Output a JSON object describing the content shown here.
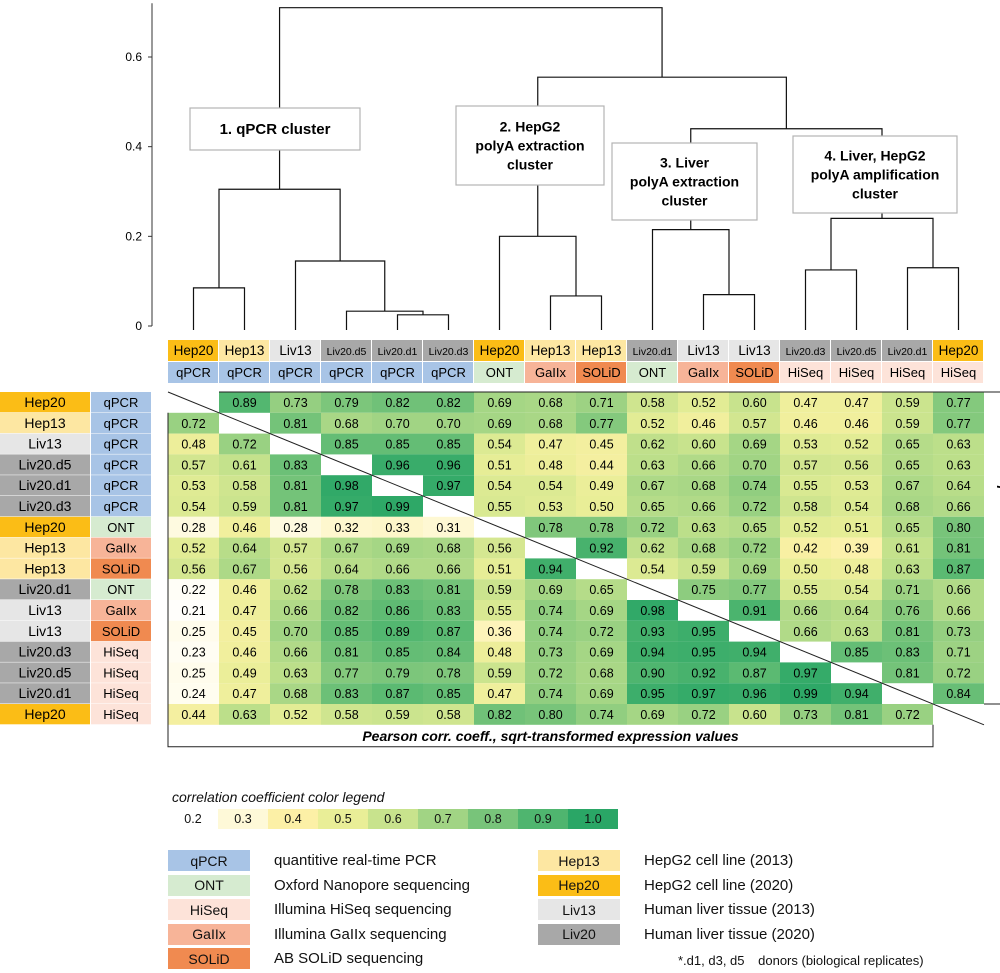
{
  "colors": {
    "qPCR": "#a8c4e6",
    "ONT": "#d6ebd0",
    "HiSeq": "#fde3d9",
    "GaIIx": "#f7b498",
    "SOLiD": "#f08a50",
    "Hep13": "#fde7a2",
    "Hep20": "#fbbd16",
    "Liv13": "#e6e6e6",
    "Liv20": "#a8a8a8",
    "scale": [
      "#ffffff",
      "#fef9d8",
      "#fcf0a6",
      "#e9ee97",
      "#c8e38d",
      "#a1d484",
      "#78c47a",
      "#4fb56f",
      "#2aa666"
    ]
  },
  "chart_data": {
    "type": "heatmap",
    "dendrogram": {
      "y_ticks": [
        "0",
        "0.2",
        "0.4",
        "0.6"
      ],
      "ylim": [
        0,
        0.72
      ],
      "merges": [
        {
          "a": "L0",
          "b": "L1",
          "h": 0.085
        },
        {
          "a": "L4",
          "b": "L5",
          "h": 0.025
        },
        {
          "a": "L3",
          "b": "m1",
          "h": 0.033
        },
        {
          "a": "L2",
          "b": "m2",
          "h": 0.145
        },
        {
          "a": "m0",
          "b": "m3",
          "h": 0.305
        },
        {
          "a": "L7",
          "b": "L8",
          "h": 0.067
        },
        {
          "a": "L6",
          "b": "m5",
          "h": 0.2
        },
        {
          "a": "L10",
          "b": "L11",
          "h": 0.07
        },
        {
          "a": "L9",
          "b": "m7",
          "h": 0.215
        },
        {
          "a": "L12",
          "b": "L13",
          "h": 0.125
        },
        {
          "a": "L14",
          "b": "L15",
          "h": 0.13
        },
        {
          "a": "m9",
          "b": "m10",
          "h": 0.24
        },
        {
          "a": "m8",
          "b": "m11",
          "h": 0.44
        },
        {
          "a": "m6",
          "b": "m12",
          "h": 0.555
        },
        {
          "a": "m4",
          "b": "m13",
          "h": 0.71
        }
      ],
      "cluster_boxes": [
        {
          "lines": [
            "1. qPCR cluster"
          ]
        },
        {
          "lines": [
            "2. HepG2",
            "polyA extraction",
            "cluster"
          ]
        },
        {
          "lines": [
            "3. Liver",
            "polyA extraction",
            "cluster"
          ]
        },
        {
          "lines": [
            "4. Liver, HepG2",
            "polyA amplification",
            "cluster"
          ]
        }
      ]
    },
    "samples": [
      {
        "sample": "Hep20",
        "stype": "Hep20",
        "method": "qPCR"
      },
      {
        "sample": "Hep13",
        "stype": "Hep13",
        "method": "qPCR"
      },
      {
        "sample": "Liv13",
        "stype": "Liv13",
        "method": "qPCR"
      },
      {
        "sample": "Liv20.d5",
        "stype": "Liv20",
        "method": "qPCR"
      },
      {
        "sample": "Liv20.d1",
        "stype": "Liv20",
        "method": "qPCR"
      },
      {
        "sample": "Liv20.d3",
        "stype": "Liv20",
        "method": "qPCR"
      },
      {
        "sample": "Hep20",
        "stype": "Hep20",
        "method": "ONT"
      },
      {
        "sample": "Hep13",
        "stype": "Hep13",
        "method": "GaIIx"
      },
      {
        "sample": "Hep13",
        "stype": "Hep13",
        "method": "SOLiD"
      },
      {
        "sample": "Liv20.d1",
        "stype": "Liv20",
        "method": "ONT"
      },
      {
        "sample": "Liv13",
        "stype": "Liv13",
        "method": "GaIIx"
      },
      {
        "sample": "Liv13",
        "stype": "Liv13",
        "method": "SOLiD"
      },
      {
        "sample": "Liv20.d3",
        "stype": "Liv20",
        "method": "HiSeq"
      },
      {
        "sample": "Liv20.d5",
        "stype": "Liv20",
        "method": "HiSeq"
      },
      {
        "sample": "Liv20.d1",
        "stype": "Liv20",
        "method": "HiSeq"
      },
      {
        "sample": "Hep20",
        "stype": "Hep20",
        "method": "HiSeq"
      }
    ],
    "matrix": [
      [
        null,
        0.89,
        0.73,
        0.79,
        0.82,
        0.82,
        0.69,
        0.68,
        0.71,
        0.58,
        0.52,
        0.6,
        0.47,
        0.47,
        0.59,
        0.77
      ],
      [
        0.72,
        null,
        0.81,
        0.68,
        0.7,
        0.7,
        0.69,
        0.68,
        0.77,
        0.52,
        0.46,
        0.57,
        0.46,
        0.46,
        0.59,
        0.77
      ],
      [
        0.48,
        0.72,
        null,
        0.85,
        0.85,
        0.85,
        0.54,
        0.47,
        0.45,
        0.62,
        0.6,
        0.69,
        0.53,
        0.52,
        0.65,
        0.63
      ],
      [
        0.57,
        0.61,
        0.83,
        null,
        0.96,
        0.96,
        0.51,
        0.48,
        0.44,
        0.63,
        0.66,
        0.7,
        0.57,
        0.56,
        0.65,
        0.63
      ],
      [
        0.53,
        0.58,
        0.81,
        0.98,
        null,
        0.97,
        0.54,
        0.54,
        0.49,
        0.67,
        0.68,
        0.74,
        0.55,
        0.53,
        0.67,
        0.64
      ],
      [
        0.54,
        0.59,
        0.81,
        0.97,
        0.99,
        null,
        0.55,
        0.53,
        0.5,
        0.65,
        0.66,
        0.72,
        0.58,
        0.54,
        0.68,
        0.66
      ],
      [
        0.28,
        0.46,
        0.28,
        0.32,
        0.33,
        0.31,
        null,
        0.78,
        0.78,
        0.72,
        0.63,
        0.65,
        0.52,
        0.51,
        0.65,
        0.8
      ],
      [
        0.52,
        0.64,
        0.57,
        0.67,
        0.69,
        0.68,
        0.56,
        null,
        0.92,
        0.62,
        0.68,
        0.72,
        0.42,
        0.39,
        0.61,
        0.81
      ],
      [
        0.56,
        0.67,
        0.56,
        0.64,
        0.66,
        0.66,
        0.51,
        0.94,
        null,
        0.54,
        0.59,
        0.69,
        0.5,
        0.48,
        0.63,
        0.87
      ],
      [
        0.22,
        0.46,
        0.62,
        0.78,
        0.83,
        0.81,
        0.59,
        0.69,
        0.65,
        null,
        0.75,
        0.77,
        0.55,
        0.54,
        0.71,
        0.66
      ],
      [
        0.21,
        0.47,
        0.66,
        0.82,
        0.86,
        0.83,
        0.55,
        0.74,
        0.69,
        0.98,
        null,
        0.91,
        0.66,
        0.64,
        0.76,
        0.66
      ],
      [
        0.25,
        0.45,
        0.7,
        0.85,
        0.89,
        0.87,
        0.36,
        0.74,
        0.72,
        0.93,
        0.95,
        null,
        0.66,
        0.63,
        0.81,
        0.73
      ],
      [
        0.23,
        0.46,
        0.66,
        0.81,
        0.85,
        0.84,
        0.48,
        0.73,
        0.69,
        0.94,
        0.95,
        0.94,
        null,
        0.85,
        0.83,
        0.71
      ],
      [
        0.25,
        0.49,
        0.63,
        0.77,
        0.79,
        0.78,
        0.59,
        0.72,
        0.68,
        0.9,
        0.92,
        0.87,
        0.97,
        null,
        0.81,
        0.72
      ],
      [
        0.24,
        0.47,
        0.68,
        0.83,
        0.87,
        0.85,
        0.47,
        0.74,
        0.69,
        0.95,
        0.97,
        0.96,
        0.99,
        0.94,
        null,
        0.84
      ],
      [
        0.44,
        0.63,
        0.52,
        0.58,
        0.59,
        0.58,
        0.82,
        0.8,
        0.74,
        0.69,
        0.72,
        0.6,
        0.73,
        0.81,
        0.72,
        null
      ]
    ],
    "lower_label": "Pearson corr. coeff., sqrt-transformed expression values",
    "upper_label": "Spearman corr. coeff.",
    "colorbar": {
      "title": "correlation coefficient color legend",
      "ticks": [
        "0.2",
        "0.3",
        "0.4",
        "0.5",
        "0.6",
        "0.7",
        "0.8",
        "0.9",
        "1.0"
      ]
    }
  },
  "legend": {
    "methods": [
      {
        "key": "qPCR",
        "label": "qPCR",
        "desc": "quantitive real-time PCR"
      },
      {
        "key": "ONT",
        "label": "ONT",
        "desc": "Oxford Nanopore sequencing"
      },
      {
        "key": "HiSeq",
        "label": "HiSeq",
        "desc": "Illumina HiSeq sequencing"
      },
      {
        "key": "GaIIx",
        "label": "GaIIx",
        "desc": "Illumina GaIIx sequencing"
      },
      {
        "key": "SOLiD",
        "label": "SOLiD",
        "desc": "AB SOLiD sequencing"
      }
    ],
    "samples": [
      {
        "key": "Hep13",
        "label": "Hep13",
        "desc": "HepG2 cell line (2013)"
      },
      {
        "key": "Hep20",
        "label": "Hep20",
        "desc": "HepG2 cell line (2020)"
      },
      {
        "key": "Liv13",
        "label": "Liv13",
        "desc": "Human liver tissue (2013)"
      },
      {
        "key": "Liv20",
        "label": "Liv20",
        "desc": "Human liver tissue (2020)"
      }
    ],
    "donors_code": "*.d1, d3, d5",
    "donors_desc": "donors (biological replicates)"
  }
}
